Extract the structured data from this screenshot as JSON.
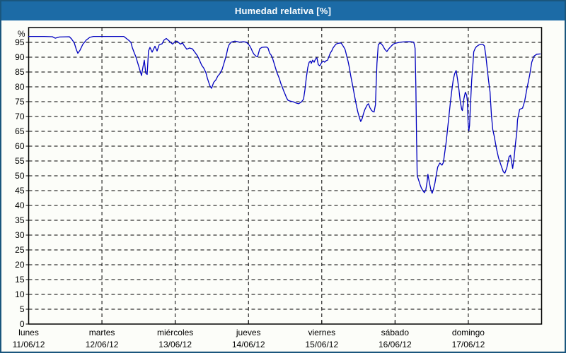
{
  "header": {
    "title": "Humedad relativa [%]"
  },
  "colors": {
    "window_border": "#1a567d",
    "titlebar_bg": "#1c6ba6",
    "titlebar_text": "#ffffff",
    "chart_bg": "#fcfdf9",
    "grid": "#000000",
    "axis": "#000000",
    "line": "#0000bf"
  },
  "chart_data": {
    "type": "line",
    "title": "Humedad relativa [%]",
    "y_unit_label": "%",
    "ylim": [
      0,
      100
    ],
    "y_ticks": [
      0,
      5,
      10,
      15,
      20,
      25,
      30,
      35,
      40,
      45,
      50,
      55,
      60,
      65,
      70,
      75,
      80,
      85,
      90,
      95
    ],
    "grid": "dashed",
    "x_days": 7,
    "x_categories": [
      {
        "day": "lunes",
        "date": "11/06/12"
      },
      {
        "day": "martes",
        "date": "12/06/12"
      },
      {
        "day": "miércoles",
        "date": "13/06/12"
      },
      {
        "day": "jueves",
        "date": "14/06/12"
      },
      {
        "day": "viernes",
        "date": "15/06/12"
      },
      {
        "day": "sábado",
        "date": "16/06/12"
      },
      {
        "day": "domingo",
        "date": "17/06/12"
      }
    ],
    "line_color": "#0000bf",
    "series": [
      {
        "name": "Humedad relativa",
        "points": [
          [
            0.0,
            97.0
          ],
          [
            0.21,
            97.0
          ],
          [
            0.323,
            96.9
          ],
          [
            0.362,
            96.4
          ],
          [
            0.42,
            96.8
          ],
          [
            0.555,
            96.9
          ],
          [
            0.584,
            96.2
          ],
          [
            0.623,
            94.8
          ],
          [
            0.652,
            92.5
          ],
          [
            0.671,
            91.3
          ],
          [
            0.7,
            92.3
          ],
          [
            0.739,
            94.3
          ],
          [
            0.787,
            95.8
          ],
          [
            0.835,
            96.7
          ],
          [
            0.883,
            97.0
          ],
          [
            1.299,
            97.0
          ],
          [
            1.366,
            95.7
          ],
          [
            1.395,
            95.0
          ],
          [
            1.414,
            93.3
          ],
          [
            1.443,
            91.3
          ],
          [
            1.463,
            90.2
          ],
          [
            1.482,
            88.6
          ],
          [
            1.501,
            87.0
          ],
          [
            1.521,
            85.4
          ],
          [
            1.54,
            83.8
          ],
          [
            1.559,
            86.6
          ],
          [
            1.579,
            89.0
          ],
          [
            1.598,
            84.6
          ],
          [
            1.617,
            84.2
          ],
          [
            1.636,
            92.1
          ],
          [
            1.656,
            93.3
          ],
          [
            1.685,
            91.7
          ],
          [
            1.723,
            93.7
          ],
          [
            1.752,
            92.1
          ],
          [
            1.781,
            94.2
          ],
          [
            1.82,
            94.5
          ],
          [
            1.849,
            95.8
          ],
          [
            1.878,
            96.3
          ],
          [
            1.916,
            95.5
          ],
          [
            1.945,
            94.8
          ],
          [
            1.965,
            94.4
          ],
          [
            1.994,
            95.2
          ],
          [
            2.023,
            95.4
          ],
          [
            2.071,
            94.4
          ],
          [
            2.1,
            94.8
          ],
          [
            2.119,
            94.0
          ],
          [
            2.158,
            92.7
          ],
          [
            2.196,
            93.1
          ],
          [
            2.235,
            92.8
          ],
          [
            2.274,
            91.5
          ],
          [
            2.303,
            90.5
          ],
          [
            2.332,
            89.0
          ],
          [
            2.361,
            87.3
          ],
          [
            2.39,
            86.3
          ],
          [
            2.419,
            84.8
          ],
          [
            2.438,
            83.0
          ],
          [
            2.457,
            81.5
          ],
          [
            2.477,
            80.2
          ],
          [
            2.496,
            79.5
          ],
          [
            2.525,
            81.5
          ],
          [
            2.554,
            82.3
          ],
          [
            2.583,
            83.7
          ],
          [
            2.612,
            84.5
          ],
          [
            2.641,
            85.9
          ],
          [
            2.66,
            87.5
          ],
          [
            2.68,
            89.2
          ],
          [
            2.699,
            90.8
          ],
          [
            2.718,
            93.0
          ],
          [
            2.737,
            94.3
          ],
          [
            2.766,
            95.1
          ],
          [
            2.815,
            95.4
          ],
          [
            2.873,
            95.1
          ],
          [
            2.93,
            95.2
          ],
          [
            2.969,
            95.1
          ],
          [
            2.998,
            94.4
          ],
          [
            3.017,
            93.8
          ],
          [
            3.037,
            92.9
          ],
          [
            3.056,
            91.8
          ],
          [
            3.075,
            91.0
          ],
          [
            3.104,
            90.3
          ],
          [
            3.124,
            90.2
          ],
          [
            3.153,
            92.8
          ],
          [
            3.182,
            93.3
          ],
          [
            3.22,
            93.4
          ],
          [
            3.249,
            93.4
          ],
          [
            3.268,
            93.0
          ],
          [
            3.288,
            91.4
          ],
          [
            3.307,
            90.8
          ],
          [
            3.326,
            89.8
          ],
          [
            3.346,
            88.2
          ],
          [
            3.365,
            86.7
          ],
          [
            3.384,
            85.1
          ],
          [
            3.403,
            83.9
          ],
          [
            3.423,
            82.7
          ],
          [
            3.442,
            81.1
          ],
          [
            3.461,
            79.9
          ],
          [
            3.48,
            78.7
          ],
          [
            3.5,
            77.5
          ],
          [
            3.519,
            76.3
          ],
          [
            3.538,
            75.5
          ],
          [
            3.567,
            75.2
          ],
          [
            3.606,
            75.0
          ],
          [
            3.645,
            74.6
          ],
          [
            3.683,
            74.3
          ],
          [
            3.722,
            74.9
          ],
          [
            3.751,
            75.8
          ],
          [
            3.77,
            79.0
          ],
          [
            3.789,
            83.0
          ],
          [
            3.809,
            86.5
          ],
          [
            3.828,
            88.3
          ],
          [
            3.847,
            88.7
          ],
          [
            3.857,
            87.9
          ],
          [
            3.876,
            89.0
          ],
          [
            3.896,
            88.3
          ],
          [
            3.915,
            89.4
          ],
          [
            3.934,
            89.8
          ],
          [
            3.953,
            87.5
          ],
          [
            3.973,
            87.1
          ],
          [
            4.002,
            88.3
          ],
          [
            4.021,
            88.7
          ],
          [
            4.04,
            88.3
          ],
          [
            4.06,
            88.8
          ],
          [
            4.079,
            89.0
          ],
          [
            4.098,
            90.2
          ],
          [
            4.117,
            91.4
          ],
          [
            4.137,
            92.2
          ],
          [
            4.156,
            93.2
          ],
          [
            4.175,
            93.8
          ],
          [
            4.194,
            94.4
          ],
          [
            4.223,
            94.7
          ],
          [
            4.262,
            94.8
          ],
          [
            4.281,
            94.2
          ],
          [
            4.3,
            93.4
          ],
          [
            4.32,
            92.5
          ],
          [
            4.339,
            90.5
          ],
          [
            4.358,
            88.7
          ],
          [
            4.377,
            86.5
          ],
          [
            4.397,
            83.5
          ],
          [
            4.416,
            81.1
          ],
          [
            4.435,
            78.7
          ],
          [
            4.454,
            76.1
          ],
          [
            4.474,
            73.5
          ],
          [
            4.493,
            71.5
          ],
          [
            4.512,
            69.8
          ],
          [
            4.531,
            68.3
          ],
          [
            4.551,
            69.3
          ],
          [
            4.57,
            71.0
          ],
          [
            4.589,
            72.4
          ],
          [
            4.618,
            73.8
          ],
          [
            4.637,
            74.3
          ],
          [
            4.657,
            73.0
          ],
          [
            4.676,
            72.2
          ],
          [
            4.695,
            71.7
          ],
          [
            4.714,
            71.5
          ],
          [
            4.733,
            74.0
          ],
          [
            4.743,
            81.0
          ],
          [
            4.753,
            88.0
          ],
          [
            4.772,
            94.3
          ],
          [
            4.801,
            94.8
          ],
          [
            4.83,
            94.0
          ],
          [
            4.859,
            92.7
          ],
          [
            4.888,
            91.9
          ],
          [
            4.917,
            92.9
          ],
          [
            4.946,
            93.7
          ],
          [
            4.975,
            94.4
          ],
          [
            5.004,
            94.7
          ],
          [
            5.043,
            94.9
          ],
          [
            5.081,
            95.1
          ],
          [
            5.149,
            95.2
          ],
          [
            5.216,
            95.2
          ],
          [
            5.255,
            95.1
          ],
          [
            5.274,
            93.0
          ],
          [
            5.284,
            80.0
          ],
          [
            5.294,
            62.0
          ],
          [
            5.303,
            50.0
          ],
          [
            5.323,
            48.5
          ],
          [
            5.342,
            47.0
          ],
          [
            5.361,
            45.8
          ],
          [
            5.38,
            45.0
          ],
          [
            5.4,
            44.3
          ],
          [
            5.419,
            45.2
          ],
          [
            5.438,
            48.0
          ],
          [
            5.448,
            50.5
          ],
          [
            5.467,
            48.0
          ],
          [
            5.487,
            45.5
          ],
          [
            5.506,
            44.1
          ],
          [
            5.525,
            45.5
          ],
          [
            5.544,
            47.5
          ],
          [
            5.564,
            50.5
          ],
          [
            5.583,
            53.0
          ],
          [
            5.612,
            54.3
          ],
          [
            5.641,
            53.6
          ],
          [
            5.66,
            54.5
          ],
          [
            5.679,
            58.0
          ],
          [
            5.699,
            61.7
          ],
          [
            5.718,
            66.0
          ],
          [
            5.737,
            70.5
          ],
          [
            5.756,
            75.0
          ],
          [
            5.776,
            79.0
          ],
          [
            5.795,
            82.5
          ],
          [
            5.814,
            84.5
          ],
          [
            5.834,
            85.5
          ],
          [
            5.853,
            82.5
          ],
          [
            5.872,
            79.0
          ],
          [
            5.891,
            75.0
          ],
          [
            5.911,
            72.3
          ],
          [
            5.92,
            72.0
          ],
          [
            5.94,
            76.0
          ],
          [
            5.959,
            78.2
          ],
          [
            5.978,
            77.2
          ],
          [
            5.988,
            75.0
          ],
          [
            5.997,
            68.0
          ],
          [
            6.007,
            65.2
          ],
          [
            6.017,
            67.0
          ],
          [
            6.026,
            72.0
          ],
          [
            6.046,
            82.3
          ],
          [
            6.055,
            85.0
          ],
          [
            6.065,
            88.5
          ],
          [
            6.074,
            91.8
          ],
          [
            6.094,
            93.0
          ],
          [
            6.113,
            93.6
          ],
          [
            6.142,
            94.1
          ],
          [
            6.171,
            94.3
          ],
          [
            6.2,
            94.3
          ],
          [
            6.219,
            93.8
          ],
          [
            6.238,
            90.7
          ],
          [
            6.258,
            86.3
          ],
          [
            6.277,
            82.0
          ],
          [
            6.296,
            78.3
          ],
          [
            6.315,
            70.4
          ],
          [
            6.334,
            65.6
          ],
          [
            6.354,
            63.3
          ],
          [
            6.383,
            59.3
          ],
          [
            6.412,
            56.1
          ],
          [
            6.45,
            53.3
          ],
          [
            6.479,
            51.3
          ],
          [
            6.499,
            50.9
          ],
          [
            6.528,
            52.9
          ],
          [
            6.557,
            56.5
          ],
          [
            6.576,
            56.9
          ],
          [
            6.595,
            54.0
          ],
          [
            6.605,
            52.5
          ],
          [
            6.624,
            56.0
          ],
          [
            6.644,
            60.9
          ],
          [
            6.663,
            65.0
          ],
          [
            6.672,
            68.9
          ],
          [
            6.701,
            72.4
          ],
          [
            6.74,
            72.8
          ],
          [
            6.769,
            75.2
          ],
          [
            6.798,
            79.2
          ],
          [
            6.837,
            83.9
          ],
          [
            6.866,
            88.3
          ],
          [
            6.895,
            90.3
          ],
          [
            6.933,
            91.0
          ],
          [
            6.982,
            91.1
          ]
        ]
      }
    ]
  }
}
